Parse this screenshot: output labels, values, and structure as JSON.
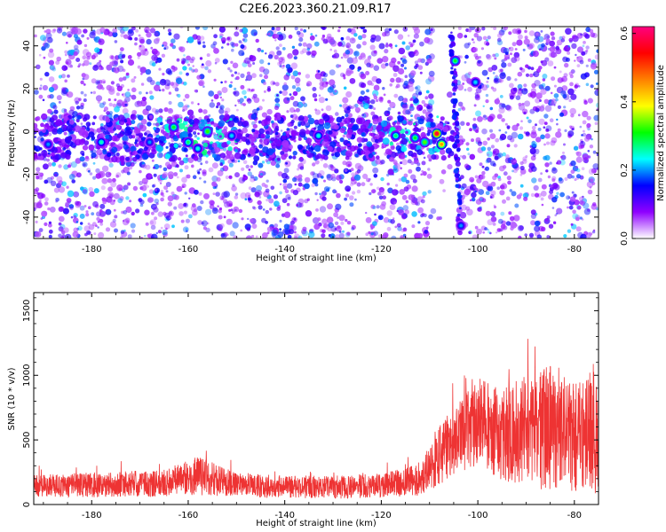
{
  "title": "C2E6.2023.360.21.09.R17",
  "chart_data": [
    {
      "type": "heatmap",
      "xlabel": "Height of straight line (km)",
      "ylabel": "Frequency (Hz)",
      "xlim": [
        -192,
        -75
      ],
      "ylim": [
        -50,
        49
      ],
      "x_ticks": [
        -180,
        -160,
        -140,
        -120,
        -100,
        -80
      ],
      "y_ticks": [
        -40,
        -20,
        0,
        20,
        40
      ],
      "colorbar": {
        "label": "Normalized spectral amplitude",
        "range": [
          0.0,
          0.62
        ],
        "ticks": [
          0.0,
          0.2,
          0.4,
          0.6
        ],
        "colormap": [
          "#ffffff",
          "#8f00ff",
          "#0000ff",
          "#00ffff",
          "#00ff00",
          "#ffff00",
          "#ff8000",
          "#ff0000",
          "#ff0080"
        ]
      },
      "features": [
        {
          "x": -108.5,
          "y": -1,
          "value": 0.58
        },
        {
          "x": -107.5,
          "y": -6,
          "value": 0.45
        },
        {
          "x": -104.7,
          "y": 33,
          "value": 0.3
        },
        {
          "x": -100.5,
          "y": 23,
          "value": 0.22
        },
        {
          "x": -103.5,
          "y": -44,
          "value": 0.2
        },
        {
          "x": -156,
          "y": 0,
          "value": 0.32
        },
        {
          "x": -160,
          "y": -5,
          "value": 0.28
        },
        {
          "x": -163,
          "y": 2,
          "value": 0.3
        },
        {
          "x": -158,
          "y": -8,
          "value": 0.24
        },
        {
          "x": -168,
          "y": -5,
          "value": 0.2
        },
        {
          "x": -151,
          "y": -2,
          "value": 0.22
        },
        {
          "x": -178,
          "y": -5,
          "value": 0.25
        },
        {
          "x": -133,
          "y": -2,
          "value": 0.24
        },
        {
          "x": -117,
          "y": -2,
          "value": 0.28
        },
        {
          "x": -113,
          "y": -3,
          "value": 0.3
        },
        {
          "x": -111,
          "y": -5,
          "value": 0.33
        },
        {
          "x": -189,
          "y": -6,
          "value": 0.2
        }
      ]
    },
    {
      "type": "line",
      "xlabel": "Height of straight line (km)",
      "ylabel": "SNR (10 * v/v)",
      "xlim": [
        -192,
        -75
      ],
      "ylim": [
        0,
        1640
      ],
      "x_ticks": [
        -180,
        -160,
        -140,
        -120,
        -100,
        -80
      ],
      "y_ticks": [
        0,
        500,
        1000,
        1500
      ],
      "series": [
        {
          "color": "#ee3333",
          "envelope": {
            "x": [
              -192,
              -180,
              -165,
              -158,
              -150,
              -140,
              -130,
              -120,
              -112,
              -108,
              -104,
              -100,
              -96,
              -92,
              -88,
              -84,
              -80,
              -77,
              -75.5,
              -75
            ],
            "low": [
              60,
              55,
              60,
              70,
              60,
              50,
              45,
              50,
              60,
              150,
              250,
              280,
              200,
              150,
              120,
              110,
              100,
              90,
              80,
              80
            ],
            "high": [
              300,
              330,
              360,
              510,
              320,
              300,
              300,
              320,
              420,
              800,
              1050,
              1280,
              1250,
              1300,
              1510,
              1500,
              1320,
              1450,
              1640,
              1200
            ]
          }
        }
      ]
    }
  ]
}
